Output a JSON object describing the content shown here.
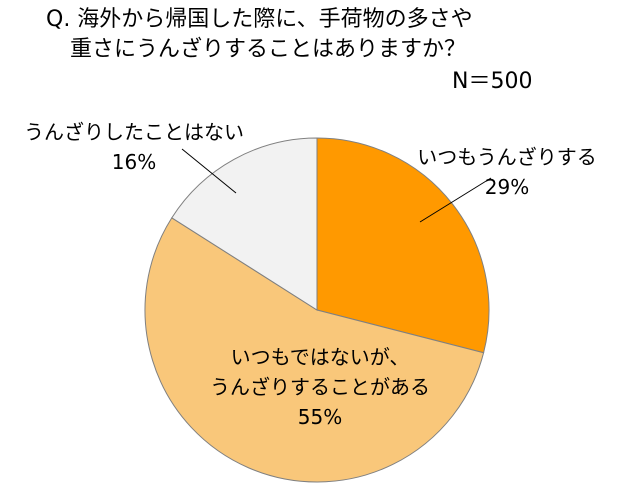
{
  "chart_data": {
    "type": "pie",
    "title_lines": [
      "Q. 海外から帰国した際に、手荷物の多さや",
      "重さにうんざりすることはありますか？"
    ],
    "sample_size": "N＝500",
    "slices": [
      {
        "label_lines": [
          "いつもうんざりする"
        ],
        "percent_label": "29%",
        "value": 29,
        "color": "#FF9900"
      },
      {
        "label_lines": [
          "いつもではないが、",
          "うんざりすることがある"
        ],
        "percent_label": "55%",
        "value": 55,
        "color": "#F9C77A"
      },
      {
        "label_lines": [
          "うんざりしたことはない"
        ],
        "percent_label": "16%",
        "value": 16,
        "color": "#F2F2F2"
      }
    ],
    "start_angle_deg": 0,
    "direction": "clockwise",
    "slice_border_color": "#808080",
    "leader_line_color": "#000000",
    "legend": "none"
  }
}
